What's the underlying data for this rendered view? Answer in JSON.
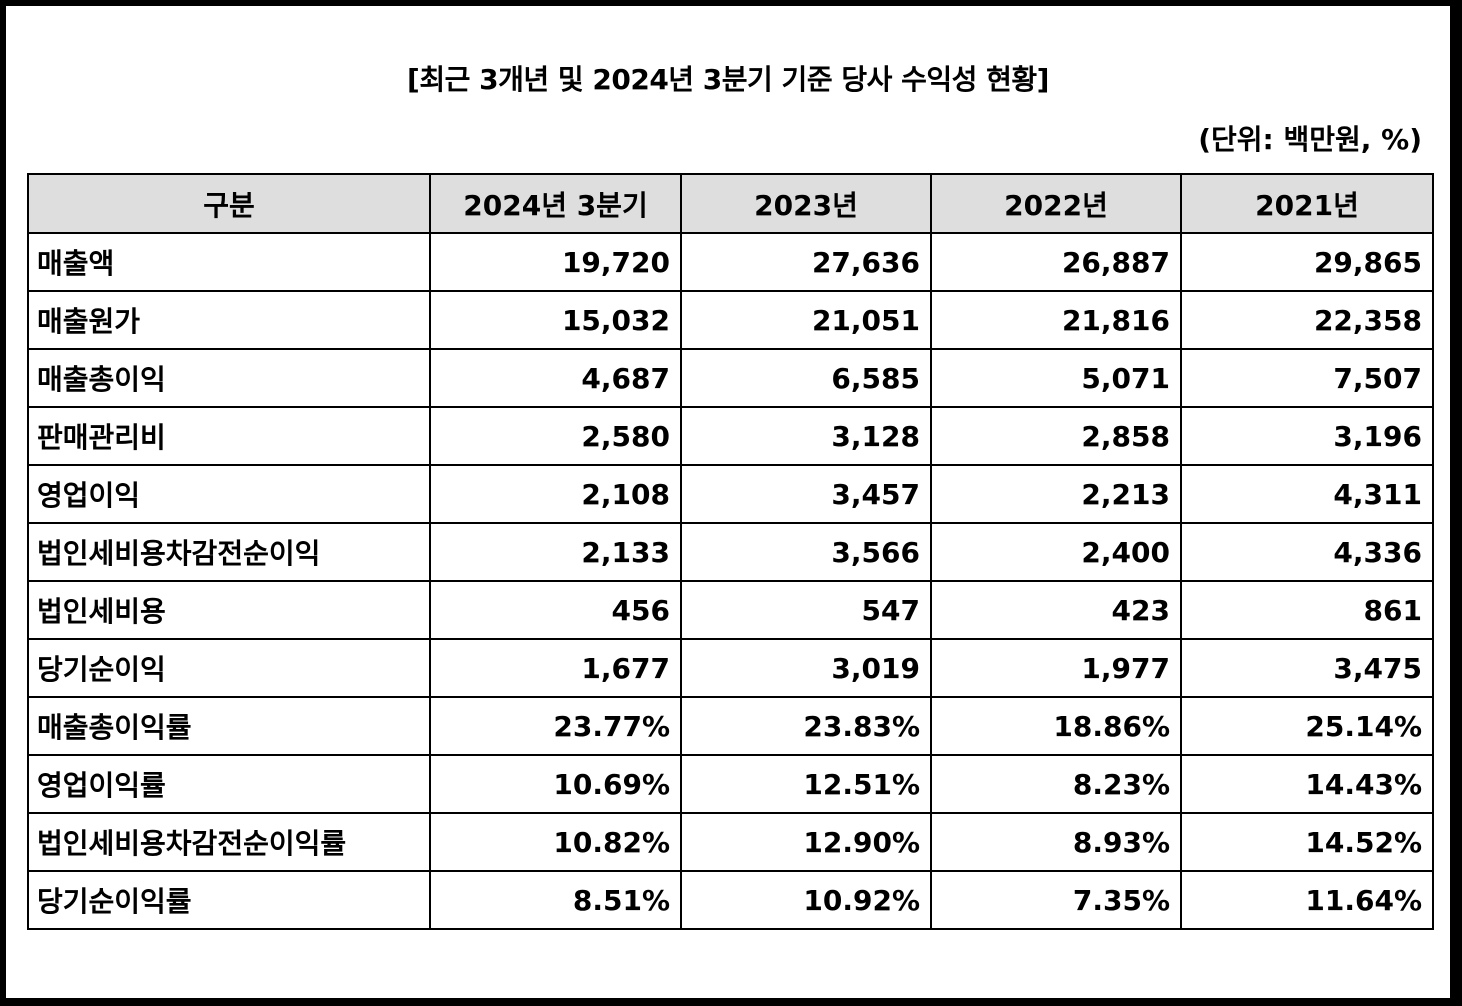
{
  "title": "[최근 3개년 및 2024년 3분기 기준 당사 수익성 현황]",
  "unit": "(단위: 백만원, %)",
  "table": {
    "headers": [
      "구분",
      "2024년 3분기",
      "2023년",
      "2022년",
      "2021년"
    ],
    "rows": [
      [
        "매출액",
        "19,720",
        "27,636",
        "26,887",
        "29,865"
      ],
      [
        "매출원가",
        "15,032",
        "21,051",
        "21,816",
        "22,358"
      ],
      [
        "매출총이익",
        "4,687",
        "6,585",
        "5,071",
        "7,507"
      ],
      [
        "판매관리비",
        "2,580",
        "3,128",
        "2,858",
        "3,196"
      ],
      [
        "영업이익",
        "2,108",
        "3,457",
        "2,213",
        "4,311"
      ],
      [
        "법인세비용차감전순이익",
        "2,133",
        "3,566",
        "2,400",
        "4,336"
      ],
      [
        "법인세비용",
        "456",
        "547",
        "423",
        "861"
      ],
      [
        "당기순이익",
        "1,677",
        "3,019",
        "1,977",
        "3,475"
      ],
      [
        "매출총이익률",
        "23.77%",
        "23.83%",
        "18.86%",
        "25.14%"
      ],
      [
        "영업이익률",
        "10.69%",
        "12.51%",
        "8.23%",
        "14.43%"
      ],
      [
        "법인세비용차감전순이익률",
        "10.82%",
        "12.90%",
        "8.93%",
        "14.52%"
      ],
      [
        "당기순이익률",
        "8.51%",
        "10.92%",
        "7.35%",
        "11.64%"
      ]
    ]
  }
}
